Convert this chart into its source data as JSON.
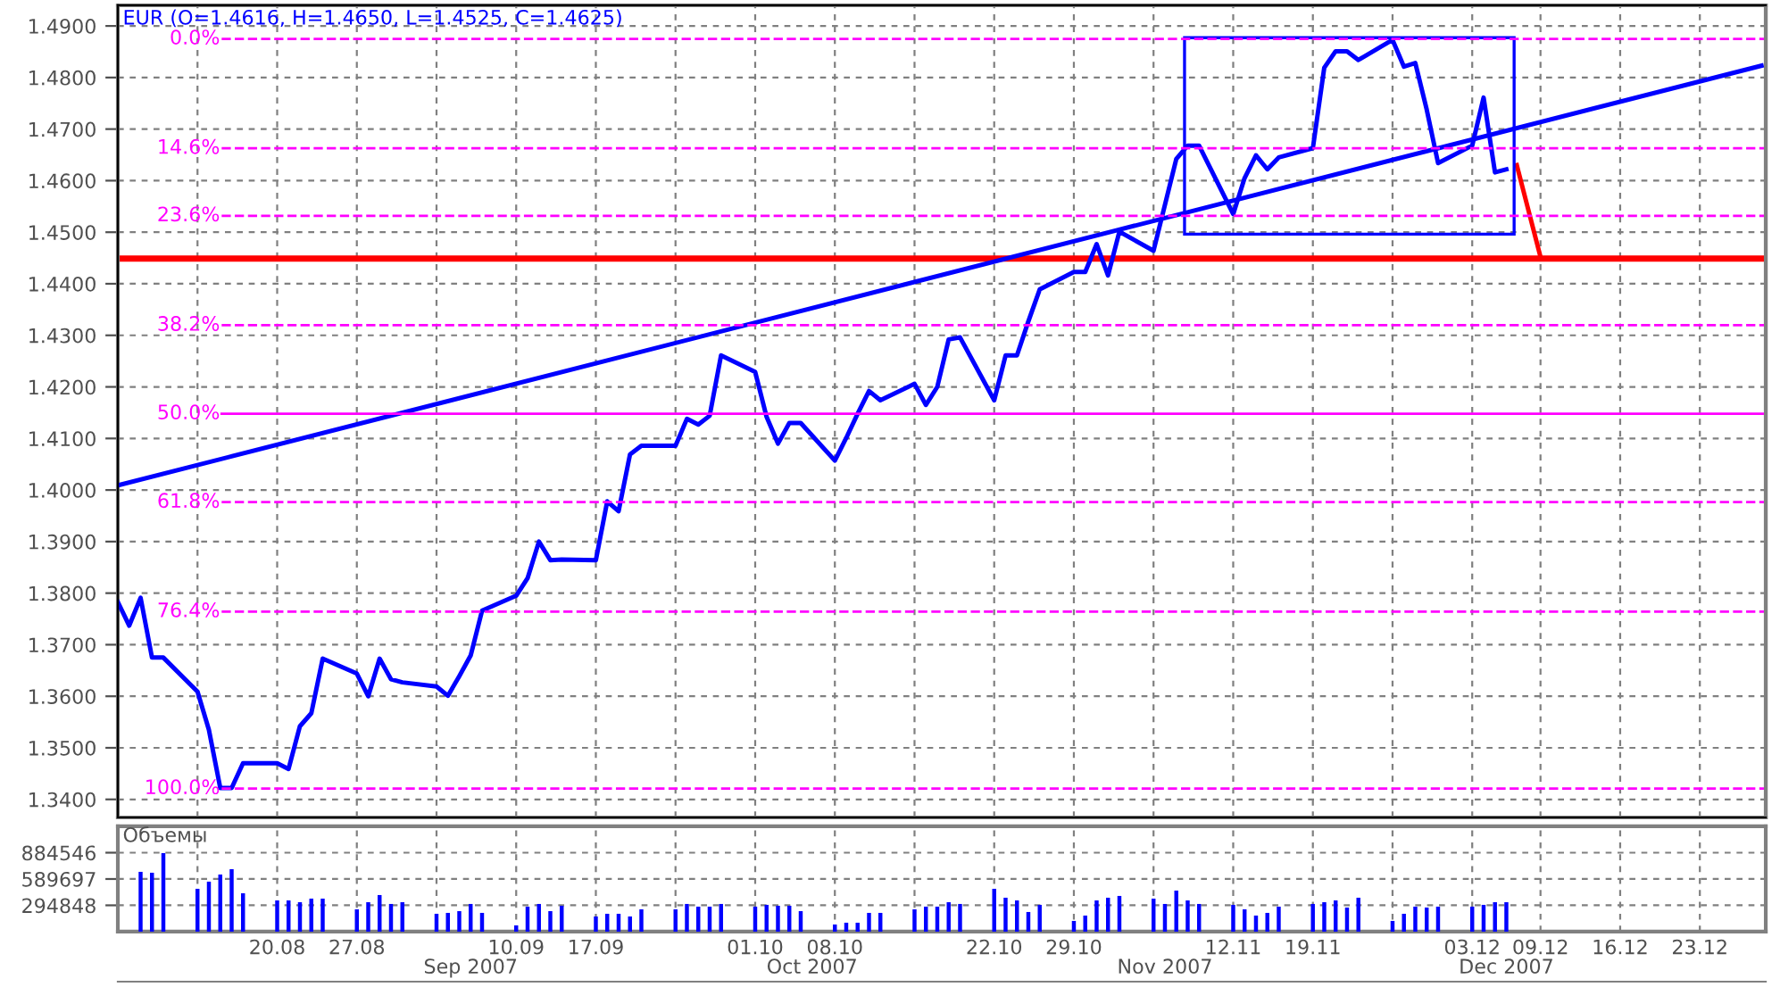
{
  "chart_data": [
    {
      "type": "line",
      "title": "EUR (O=1.4616, H=1.4650, L=1.4525, C=1.4625)",
      "x": [
        "2007-08-06",
        "2007-08-07",
        "2007-08-08",
        "2007-08-09",
        "2007-08-10",
        "2007-08-13",
        "2007-08-14",
        "2007-08-15",
        "2007-08-16",
        "2007-08-17",
        "2007-08-20",
        "2007-08-21",
        "2007-08-22",
        "2007-08-23",
        "2007-08-24",
        "2007-08-27",
        "2007-08-28",
        "2007-08-29",
        "2007-08-30",
        "2007-08-31",
        "2007-09-03",
        "2007-09-04",
        "2007-09-05",
        "2007-09-06",
        "2007-09-07",
        "2007-09-10",
        "2007-09-11",
        "2007-09-12",
        "2007-09-13",
        "2007-09-14",
        "2007-09-17",
        "2007-09-18",
        "2007-09-19",
        "2007-09-20",
        "2007-09-21",
        "2007-09-24",
        "2007-09-25",
        "2007-09-26",
        "2007-09-27",
        "2007-09-28",
        "2007-10-01",
        "2007-10-02",
        "2007-10-03",
        "2007-10-04",
        "2007-10-05",
        "2007-10-08",
        "2007-10-09",
        "2007-10-10",
        "2007-10-11",
        "2007-10-12",
        "2007-10-15",
        "2007-10-16",
        "2007-10-17",
        "2007-10-18",
        "2007-10-19",
        "2007-10-22",
        "2007-10-23",
        "2007-10-24",
        "2007-10-25",
        "2007-10-26",
        "2007-10-29",
        "2007-10-30",
        "2007-10-31",
        "2007-11-01",
        "2007-11-02",
        "2007-11-05",
        "2007-11-06",
        "2007-11-07",
        "2007-11-08",
        "2007-11-09",
        "2007-11-12",
        "2007-11-13",
        "2007-11-14",
        "2007-11-15",
        "2007-11-16",
        "2007-11-19",
        "2007-11-20",
        "2007-11-21",
        "2007-11-22",
        "2007-11-23",
        "2007-11-26",
        "2007-11-27",
        "2007-11-28",
        "2007-11-29",
        "2007-11-30",
        "2007-12-03",
        "2007-12-04",
        "2007-12-05",
        "2007-12-06"
      ],
      "series": [
        {
          "color": "#0000ff",
          "values": [
            1.3783,
            1.3737,
            1.3791,
            1.3675,
            1.3675,
            1.3609,
            1.3535,
            1.3422,
            1.3422,
            1.347,
            1.347,
            1.3459,
            1.3542,
            1.3567,
            1.3673,
            1.3644,
            1.36,
            1.3673,
            1.3633,
            1.3627,
            1.3619,
            1.3601,
            1.3639,
            1.3679,
            1.3766,
            1.3795,
            1.3829,
            1.39,
            1.3864,
            1.3865,
            1.3864,
            1.3978,
            1.3959,
            1.4069,
            1.4086,
            1.4086,
            1.4138,
            1.4127,
            1.4144,
            1.4261,
            1.4229,
            1.4142,
            1.409,
            1.413,
            1.413,
            1.4057,
            1.4101,
            1.4148,
            1.4192,
            1.4174,
            1.4206,
            1.4165,
            1.42,
            1.4292,
            1.4296,
            1.4174,
            1.4261,
            1.4261,
            1.4327,
            1.4389,
            1.4423,
            1.4423,
            1.4477,
            1.4416,
            1.4501,
            1.4464,
            1.4553,
            1.4642,
            1.4668,
            1.4668,
            1.4535,
            1.4605,
            1.4649,
            1.4622,
            1.4645,
            1.4663,
            1.4819,
            1.4851,
            1.4851,
            1.4834,
            1.4873,
            1.4821,
            1.4828,
            1.4738,
            1.4634,
            1.4668,
            1.4761,
            1.4616,
            1.4622
          ]
        },
        {
          "color": "#0000ff",
          "x": [
            "2007-08-06",
            "2007-12-28T10:00"
          ],
          "values": [
            1.4009,
            1.4823
          ]
        },
        {
          "color": "#ff0000",
          "x": [
            "2007-12-06T22:00",
            "2007-12-09"
          ],
          "values": [
            1.463,
            1.4452
          ]
        }
      ],
      "ref_lines": [
        {
          "axis": "y",
          "value": 1.4449,
          "color": "#ff0000",
          "line_style": "solid"
        },
        {
          "axis": "y2",
          "value": 0,
          "label": "0.0%",
          "color": "#ff00ff",
          "line_style": "dashed"
        },
        {
          "axis": "y2",
          "value": 14.6,
          "label": "14.6%",
          "color": "#ff00ff",
          "line_style": "dashed"
        },
        {
          "axis": "y2",
          "value": 23.6,
          "label": "23.6%",
          "color": "#ff00ff",
          "line_style": "dashed"
        },
        {
          "axis": "y2",
          "value": 38.2,
          "label": "38.2%",
          "color": "#ff00ff",
          "line_style": "dashed"
        },
        {
          "axis": "y2",
          "value": 50,
          "label": "50.0%",
          "color": "#ff00ff",
          "line_style": "solid"
        },
        {
          "axis": "y2",
          "value": 61.8,
          "label": "61.8%",
          "color": "#ff00ff",
          "line_style": "dashed"
        },
        {
          "axis": "y2",
          "value": 76.4,
          "label": "76.4%",
          "color": "#ff00ff",
          "line_style": "dashed"
        },
        {
          "axis": "y2",
          "value": 100,
          "label": "100.0%",
          "color": "#ff00ff",
          "line_style": "dashed"
        }
      ],
      "xlim": [
        "2007-08-06",
        "2007-12-28T19:00"
      ],
      "xticks": [
        {
          "value": "2007-08-13",
          "label": null
        },
        {
          "value": "2007-08-20",
          "label": null
        },
        {
          "value": "2007-08-27",
          "label": null
        },
        {
          "value": "2007-09-03",
          "label": null
        },
        {
          "value": "2007-09-10",
          "label": null
        },
        {
          "value": "2007-09-17",
          "label": null
        },
        {
          "value": "2007-09-24",
          "label": null
        },
        {
          "value": "2007-10-01",
          "label": null
        },
        {
          "value": "2007-10-08",
          "label": null
        },
        {
          "value": "2007-10-15",
          "label": null
        },
        {
          "value": "2007-10-22",
          "label": null
        },
        {
          "value": "2007-10-29",
          "label": null
        },
        {
          "value": "2007-11-05",
          "label": null
        },
        {
          "value": "2007-11-12",
          "label": null
        },
        {
          "value": "2007-11-19",
          "label": null
        },
        {
          "value": "2007-11-26",
          "label": null
        },
        {
          "value": "2007-12-03",
          "label": null
        },
        {
          "value": "2007-12-09",
          "label": null
        },
        {
          "value": "2007-12-16",
          "label": null
        },
        {
          "value": "2007-12-23",
          "label": null
        }
      ],
      "ylim": [
        1.3365,
        1.494
      ],
      "yticks": [
        {
          "value": 1.34,
          "label": "1.3400"
        },
        {
          "value": 1.35,
          "label": "1.3500"
        },
        {
          "value": 1.36,
          "label": "1.3600"
        },
        {
          "value": 1.37,
          "label": "1.3700"
        },
        {
          "value": 1.38,
          "label": "1.3800"
        },
        {
          "value": 1.39,
          "label": "1.3900"
        },
        {
          "value": 1.4,
          "label": "1.4000"
        },
        {
          "value": 1.41,
          "label": "1.4100"
        },
        {
          "value": 1.42,
          "label": "1.4200"
        },
        {
          "value": 1.43,
          "label": "1.4300"
        },
        {
          "value": 1.44,
          "label": "1.4400"
        },
        {
          "value": 1.45,
          "label": "1.4500"
        },
        {
          "value": 1.46,
          "label": "1.4600"
        },
        {
          "value": 1.47,
          "label": "1.4700"
        },
        {
          "value": 1.48,
          "label": "1.4800"
        },
        {
          "value": 1.49,
          "label": "1.4900"
        }
      ],
      "y2lim": [
        103.85,
        -4.47
      ],
      "tick_labels": "y",
      "grid": true,
      "marker": "none",
      "line_style": "solid"
    },
    {
      "type": "bar",
      "title": "Объемы",
      "color": "#0000ff",
      "x": [
        "2007-08-08",
        "2007-08-09",
        "2007-08-10",
        "2007-08-13",
        "2007-08-14",
        "2007-08-15",
        "2007-08-16",
        "2007-08-17",
        "2007-08-20",
        "2007-08-21",
        "2007-08-22",
        "2007-08-23",
        "2007-08-24",
        "2007-08-27",
        "2007-08-28",
        "2007-08-29",
        "2007-08-30",
        "2007-08-31",
        "2007-09-03",
        "2007-09-04",
        "2007-09-05",
        "2007-09-06",
        "2007-09-07",
        "2007-09-10",
        "2007-09-11",
        "2007-09-12",
        "2007-09-13",
        "2007-09-14",
        "2007-09-17",
        "2007-09-18",
        "2007-09-19",
        "2007-09-20",
        "2007-09-21",
        "2007-09-24",
        "2007-09-25",
        "2007-09-26",
        "2007-09-27",
        "2007-09-28",
        "2007-10-01",
        "2007-10-02",
        "2007-10-03",
        "2007-10-04",
        "2007-10-05",
        "2007-10-08",
        "2007-10-09",
        "2007-10-10",
        "2007-10-11",
        "2007-10-12",
        "2007-10-15",
        "2007-10-16",
        "2007-10-17",
        "2007-10-18",
        "2007-10-19",
        "2007-10-22",
        "2007-10-23",
        "2007-10-24",
        "2007-10-25",
        "2007-10-26",
        "2007-10-29",
        "2007-10-30",
        "2007-10-31",
        "2007-11-01",
        "2007-11-02",
        "2007-11-05",
        "2007-11-06",
        "2007-11-07",
        "2007-11-08",
        "2007-11-09",
        "2007-11-12",
        "2007-11-13",
        "2007-11-14",
        "2007-11-15",
        "2007-11-16",
        "2007-11-19",
        "2007-11-20",
        "2007-11-21",
        "2007-11-22",
        "2007-11-23",
        "2007-11-26",
        "2007-11-27",
        "2007-11-28",
        "2007-11-29",
        "2007-11-30",
        "2007-12-03",
        "2007-12-04",
        "2007-12-05",
        "2007-12-06"
      ],
      "values": [
        670000,
        660000,
        880000,
        480000,
        560000,
        640000,
        700000,
        430000,
        350000,
        350000,
        330000,
        370000,
        370000,
        250000,
        330000,
        410000,
        310000,
        330000,
        200000,
        210000,
        230000,
        310000,
        210000,
        70000,
        280000,
        310000,
        230000,
        290000,
        170000,
        200000,
        200000,
        170000,
        250000,
        250000,
        310000,
        280000,
        280000,
        310000,
        280000,
        300000,
        290000,
        290000,
        230000,
        80000,
        100000,
        100000,
        210000,
        210000,
        250000,
        280000,
        280000,
        330000,
        310000,
        480000,
        380000,
        350000,
        220000,
        300000,
        120000,
        180000,
        350000,
        380000,
        400000,
        370000,
        310000,
        460000,
        350000,
        310000,
        300000,
        250000,
        180000,
        210000,
        280000,
        310000,
        330000,
        350000,
        270000,
        380000,
        120000,
        200000,
        280000,
        270000,
        280000,
        280000,
        300000,
        330000,
        330000
      ],
      "xlim": [
        "2007-08-06",
        "2007-12-28T19:00"
      ],
      "xticks": [
        {
          "value": "2007-08-13",
          "label": null
        },
        {
          "value": "2007-08-20",
          "label": "20.08"
        },
        {
          "value": "2007-08-27",
          "label": "27.08"
        },
        {
          "value": "2007-09-03",
          "label": null
        },
        {
          "value": "2007-09-10",
          "label": "10.09"
        },
        {
          "value": "2007-09-17",
          "label": "17.09"
        },
        {
          "value": "2007-09-24",
          "label": null
        },
        {
          "value": "2007-10-01",
          "label": "01.10"
        },
        {
          "value": "2007-10-08",
          "label": "08.10"
        },
        {
          "value": "2007-10-15",
          "label": null
        },
        {
          "value": "2007-10-22",
          "label": "22.10"
        },
        {
          "value": "2007-10-29",
          "label": "29.10"
        },
        {
          "value": "2007-11-05",
          "label": null
        },
        {
          "value": "2007-11-12",
          "label": "12.11"
        },
        {
          "value": "2007-11-19",
          "label": "19.11"
        },
        {
          "value": "2007-11-26",
          "label": null
        },
        {
          "value": "2007-12-03",
          "label": "03.12"
        },
        {
          "value": "2007-12-09",
          "label": "09.12"
        },
        {
          "value": "2007-12-16",
          "label": "16.12"
        },
        {
          "value": "2007-12-23",
          "label": "23.12"
        }
      ],
      "x2lim": [
        "2007-08-06",
        "2007-12-28T19:00"
      ],
      "x2ticks": [
        {
          "value": "2007-09-06",
          "label": "Sep 2007"
        },
        {
          "value": "2007-10-06",
          "label": "Oct 2007"
        },
        {
          "value": "2007-11-06",
          "label": "Nov 2007"
        },
        {
          "value": "2007-12-06",
          "label": "Dec 2007"
        }
      ],
      "ylim": [
        0,
        1180000
      ],
      "yticks": [
        294848,
        589697,
        884546
      ],
      "grid": true
    }
  ]
}
